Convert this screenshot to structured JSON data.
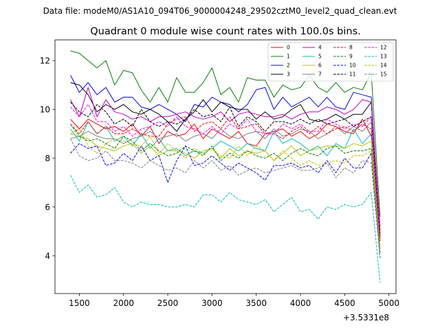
{
  "figure": {
    "suptitle": "Data file: modeM0/AS1A10_094T06_9000004248_29502cztM0_level2_quad_clean.evt"
  },
  "chart_data": {
    "type": "line",
    "title": "Quadrant 0 module wise count rates with 100.0s bins.",
    "xlabel": "",
    "ylabel": "",
    "x_offset_label": "+3.5331e8",
    "xlim": [
      1225,
      5080
    ],
    "ylim": [
      2.45,
      12.85
    ],
    "x_ticks": [
      1500,
      2000,
      2500,
      3000,
      3500,
      4000,
      4500,
      5000
    ],
    "x_tick_labels": [
      "1500",
      "2000",
      "2500",
      "3000",
      "3500",
      "4000",
      "4500",
      "5000"
    ],
    "y_ticks": [
      4,
      6,
      8,
      10,
      12
    ],
    "y_tick_labels": [
      "4",
      "6",
      "8",
      "10",
      "12"
    ],
    "legend_location": "top-right",
    "x": [
      1400,
      1500,
      1600,
      1700,
      1800,
      1900,
      2000,
      2100,
      2200,
      2300,
      2400,
      2500,
      2600,
      2700,
      2800,
      2900,
      3000,
      3100,
      3200,
      3300,
      3400,
      3500,
      3600,
      3700,
      3800,
      3900,
      4000,
      4100,
      4200,
      4300,
      4400,
      4500,
      4600,
      4700,
      4800,
      4900
    ],
    "series": [
      {
        "name": "0",
        "color": "#ff0000",
        "dash": "solid",
        "values": [
          9.6,
          9.2,
          9.6,
          9.4,
          9.2,
          9.3,
          9.1,
          9.4,
          8.9,
          9.3,
          8.6,
          9.1,
          8.9,
          9.0,
          9.4,
          8.8,
          9.2,
          9.0,
          8.8,
          9.1,
          8.6,
          8.5,
          9.0,
          9.1,
          9.2,
          8.9,
          9.1,
          8.8,
          9.0,
          9.4,
          9.3,
          9.1,
          9.0,
          9.6,
          8.9,
          4.6
        ]
      },
      {
        "name": "1",
        "color": "#008000",
        "dash": "solid",
        "values": [
          12.4,
          12.3,
          12.0,
          11.7,
          12.0,
          11.0,
          11.6,
          11.5,
          10.8,
          10.3,
          10.9,
          10.3,
          11.3,
          10.7,
          10.7,
          11.1,
          11.7,
          10.6,
          10.9,
          10.3,
          11.3,
          11.2,
          11.2,
          10.5,
          11.0,
          10.8,
          10.9,
          11.4,
          10.9,
          10.7,
          11.1,
          10.7,
          10.9,
          10.8,
          11.5,
          5.6
        ]
      },
      {
        "name": "2",
        "color": "#0000ff",
        "dash": "solid",
        "values": [
          11.4,
          10.7,
          11.1,
          10.6,
          10.9,
          10.3,
          10.5,
          10.5,
          10.1,
          10.0,
          10.2,
          10.0,
          9.8,
          9.5,
          10.2,
          10.1,
          10.5,
          10.3,
          10.2,
          9.9,
          10.2,
          10.8,
          10.9,
          10.0,
          10.5,
          10.1,
          10.3,
          10.5,
          10.1,
          10.5,
          10.1,
          10.0,
          10.7,
          10.6,
          10.5,
          5.0
        ]
      },
      {
        "name": "3",
        "color": "#000000",
        "dash": "solid",
        "values": [
          11.1,
          11.0,
          10.6,
          9.9,
          10.2,
          10.0,
          10.2,
          9.9,
          9.8,
          10.0,
          9.8,
          9.5,
          9.1,
          9.6,
          9.9,
          10.4,
          9.9,
          10.3,
          10.1,
          10.0,
          10.0,
          9.6,
          9.9,
          9.6,
          9.7,
          10.0,
          10.2,
          9.6,
          9.5,
          9.6,
          9.8,
          9.6,
          9.8,
          9.8,
          10.3,
          4.9
        ]
      },
      {
        "name": "4",
        "color": "#c000c0",
        "dash": "solid",
        "values": [
          10.4,
          9.7,
          10.9,
          9.7,
          10.4,
          9.9,
          9.8,
          9.6,
          9.7,
          9.5,
          9.7,
          9.7,
          9.8,
          9.9,
          9.7,
          9.6,
          9.7,
          9.9,
          9.5,
          9.8,
          9.9,
          9.8,
          9.7,
          9.7,
          9.8,
          9.6,
          9.8,
          9.9,
          9.9,
          10.1,
          10.0,
          9.8,
          10.0,
          10.4,
          10.3,
          5.2
        ]
      },
      {
        "name": "5",
        "color": "#00bfbf",
        "dash": "solid",
        "values": [
          9.2,
          8.7,
          9.5,
          9.0,
          9.3,
          8.7,
          8.9,
          8.5,
          9.0,
          8.4,
          8.8,
          8.3,
          8.4,
          8.1,
          8.3,
          8.2,
          8.4,
          8.7,
          8.5,
          8.3,
          8.6,
          8.4,
          8.3,
          9.1,
          8.6,
          8.8,
          8.6,
          8.3,
          8.5,
          8.1,
          8.6,
          8.4,
          9.2,
          8.6,
          9.0,
          4.3
        ]
      },
      {
        "name": "6",
        "color": "#bfbf00",
        "dash": "solid",
        "values": [
          9.0,
          8.9,
          8.8,
          8.5,
          8.4,
          8.3,
          8.5,
          8.6,
          8.2,
          8.5,
          8.1,
          8.3,
          8.3,
          8.2,
          8.0,
          8.3,
          8.4,
          8.0,
          8.4,
          8.1,
          8.3,
          8.2,
          8.3,
          7.9,
          8.2,
          8.5,
          8.1,
          8.3,
          8.4,
          8.5,
          8.5,
          8.4,
          8.6,
          8.5,
          8.7,
          4.3
        ]
      },
      {
        "name": "7",
        "color": "#808080",
        "dash": "solid",
        "values": [
          8.8,
          8.9,
          9.1,
          8.9,
          8.8,
          8.8,
          8.6,
          8.8,
          8.9,
          9.1,
          8.8,
          8.9,
          9.0,
          8.7,
          8.9,
          9.0,
          8.8,
          9.2,
          8.9,
          8.8,
          9.0,
          9.1,
          8.8,
          9.2,
          8.9,
          9.0,
          9.2,
          9.1,
          8.8,
          9.0,
          9.3,
          9.0,
          9.3,
          9.1,
          9.5,
          4.7
        ]
      },
      {
        "name": "8",
        "color": "#ff0000",
        "dash": "dashed",
        "values": [
          9.4,
          9.0,
          9.5,
          9.0,
          9.3,
          9.0,
          9.0,
          9.2,
          9.0,
          8.9,
          8.9,
          9.4,
          9.6,
          9.7,
          9.1,
          9.4,
          9.5,
          9.2,
          9.7,
          9.2,
          9.3,
          9.4,
          9.0,
          9.0,
          8.8,
          9.1,
          9.3,
          9.0,
          9.3,
          9.0,
          9.2,
          9.3,
          9.1,
          9.4,
          9.2,
          4.6
        ]
      },
      {
        "name": "9",
        "color": "#008000",
        "dash": "dashed",
        "values": [
          9.4,
          8.9,
          8.7,
          8.8,
          8.6,
          8.4,
          8.9,
          8.7,
          8.3,
          8.6,
          8.3,
          8.1,
          8.2,
          8.5,
          8.3,
          8.1,
          8.5,
          7.9,
          8.2,
          8.0,
          8.3,
          8.1,
          8.0,
          8.2,
          7.9,
          8.2,
          8.4,
          8.2,
          8.1,
          8.4,
          8.5,
          8.2,
          8.3,
          8.3,
          8.4,
          4.1
        ]
      },
      {
        "name": "10",
        "color": "#0000ff",
        "dash": "dashed",
        "values": [
          8.2,
          8.6,
          8.4,
          8.5,
          7.7,
          7.8,
          8.2,
          7.9,
          8.5,
          7.9,
          8.1,
          7.0,
          7.9,
          8.5,
          7.7,
          7.8,
          8.1,
          7.8,
          7.5,
          7.8,
          7.6,
          7.4,
          7.1,
          7.7,
          7.7,
          7.8,
          7.6,
          7.7,
          7.4,
          7.9,
          7.4,
          8.0,
          7.6,
          7.6,
          8.2,
          3.9
        ]
      },
      {
        "name": "11",
        "color": "#000000",
        "dash": "dashed",
        "values": [
          10.3,
          9.9,
          9.7,
          10.2,
          9.9,
          9.4,
          9.6,
          9.3,
          10.0,
          9.5,
          9.3,
          9.5,
          9.4,
          9.6,
          10.0,
          9.7,
          9.8,
          9.5,
          10.1,
          9.3,
          9.7,
          9.5,
          9.1,
          9.5,
          9.5,
          9.4,
          9.6,
          9.4,
          9.6,
          9.4,
          9.5,
          9.6,
          9.3,
          9.5,
          9.7,
          4.8
        ]
      },
      {
        "name": "12",
        "color": "#ff00ff",
        "dash": "dashed",
        "values": [
          10.1,
          9.7,
          10.2,
          9.5,
          9.5,
          9.1,
          9.3,
          8.9,
          9.2,
          9.3,
          9.5,
          9.3,
          9.7,
          9.3,
          9.2,
          9.0,
          9.3,
          9.0,
          9.4,
          9.2,
          9.6,
          9.1,
          9.0,
          9.0,
          9.4,
          9.2,
          9.4,
          9.1,
          9.1,
          9.6,
          9.4,
          9.2,
          9.4,
          9.3,
          9.7,
          4.9
        ]
      },
      {
        "name": "13",
        "color": "#00bfbf",
        "dash": "dashed",
        "values": [
          7.3,
          6.6,
          6.9,
          6.4,
          6.5,
          6.8,
          6.2,
          6.0,
          6.2,
          6.1,
          6.1,
          6.0,
          6.0,
          6.1,
          6.0,
          6.5,
          6.5,
          6.2,
          6.6,
          6.3,
          6.2,
          6.1,
          6.3,
          5.8,
          6.1,
          6.4,
          5.8,
          5.9,
          5.5,
          6.0,
          5.9,
          6.1,
          6.0,
          6.1,
          6.6,
          2.9
        ]
      },
      {
        "name": "14",
        "color": "#bfbf00",
        "dash": "dashed",
        "values": [
          9.0,
          9.2,
          8.5,
          8.2,
          8.6,
          8.8,
          8.7,
          8.6,
          8.5,
          8.9,
          8.2,
          8.6,
          8.3,
          8.0,
          8.4,
          8.2,
          8.4,
          8.1,
          8.0,
          8.5,
          8.1,
          8.5,
          8.3,
          7.9,
          8.3,
          8.0,
          7.7,
          7.9,
          7.7,
          7.8,
          7.9,
          7.8,
          8.1,
          8.1,
          8.3,
          4.3
        ]
      },
      {
        "name": "15",
        "color": "#808080",
        "dash": "dashed",
        "values": [
          8.8,
          8.1,
          7.9,
          8.0,
          8.3,
          7.9,
          7.9,
          7.8,
          7.6,
          7.9,
          7.7,
          7.5,
          7.6,
          7.4,
          7.9,
          7.6,
          7.9,
          7.5,
          7.7,
          7.3,
          7.5,
          7.6,
          7.4,
          7.5,
          7.6,
          7.7,
          7.5,
          7.5,
          7.6,
          7.8,
          7.2,
          7.6,
          7.4,
          7.9,
          7.8,
          3.9
        ]
      }
    ]
  }
}
